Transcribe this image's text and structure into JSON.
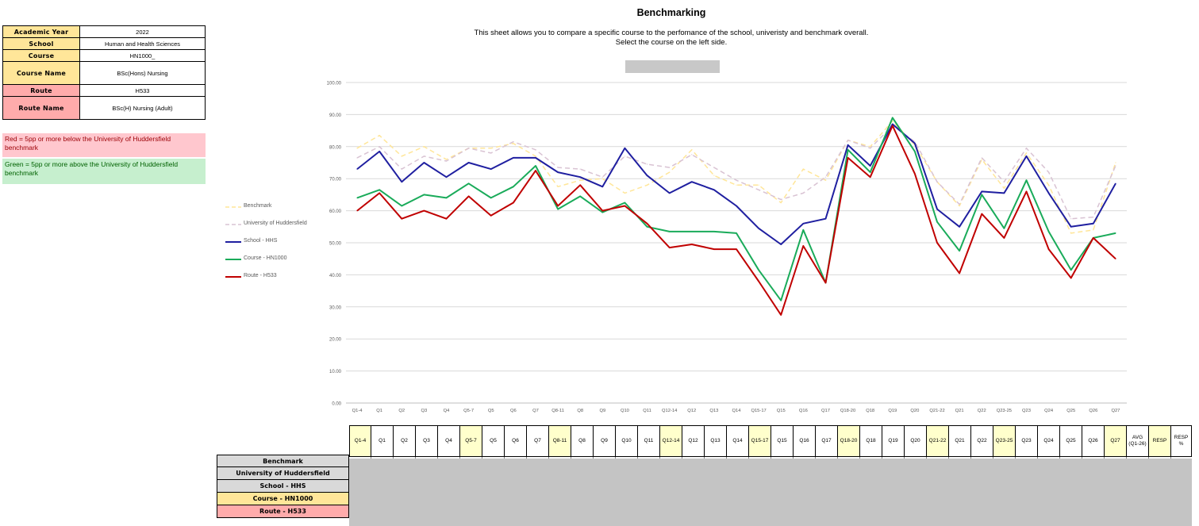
{
  "info_table": [
    {
      "label": "Academic Year",
      "value": "2022",
      "color": "yellow"
    },
    {
      "label": "School",
      "value": "Human and Health Sciences",
      "color": "yellow"
    },
    {
      "label": "Course",
      "value": "HN1000_",
      "color": "yellow"
    },
    {
      "label": "Course Name",
      "value": "BSc(Hons) Nursing",
      "color": "yellow"
    },
    {
      "label": "Route",
      "value": "H533",
      "color": "red"
    },
    {
      "label": "Route Name",
      "value": "BSc(H) Nursing (Adult)",
      "color": "red"
    }
  ],
  "key": {
    "red_text": "Red = 5pp or more below the University of Huddersfield benchmark",
    "green_text": "Green = 5pp or more above the University of Huddersfield benchmark"
  },
  "page": {
    "title": "Benchmarking",
    "desc_line1": "This sheet allows you to compare a specific course to the perfomance of the school, univeristy and benchmark overall.",
    "desc_line2": "Select the course on the left side."
  },
  "colors": {
    "benchmark": "#ffe699",
    "university": "#d9c3d3",
    "school": "#1f1fa0",
    "course": "#1aab5a",
    "route": "#c00000",
    "highlight": "#ffffcc"
  },
  "chart_data": {
    "type": "line",
    "title": "",
    "xlabel": "",
    "ylabel": "",
    "ylim": [
      0,
      100
    ],
    "ytick_labels": [
      "0.00",
      "10.00",
      "20.00",
      "30.00",
      "40.00",
      "50.00",
      "60.00",
      "70.00",
      "80.00",
      "90.00",
      "100.00"
    ],
    "grid": true,
    "legend_position": "left",
    "categories": [
      "Q1-4",
      "Q1",
      "Q2",
      "Q3",
      "Q4",
      "Q5-7",
      "Q5",
      "Q6",
      "Q7",
      "Q8-11",
      "Q8",
      "Q9",
      "Q10",
      "Q11",
      "Q12-14",
      "Q12",
      "Q13",
      "Q14",
      "Q15-17",
      "Q15",
      "Q16",
      "Q17",
      "Q18-20",
      "Q18",
      "Q19",
      "Q20",
      "Q21-22",
      "Q21",
      "Q22",
      "Q23-25",
      "Q23",
      "Q24",
      "Q25",
      "Q26",
      "Q27"
    ],
    "series": [
      {
        "name": "Benchmark",
        "style": "dashed",
        "color_key": "benchmark",
        "values": [
          79.5,
          83.5,
          77.0,
          80.0,
          76.0,
          79.5,
          79.5,
          81.0,
          77.0,
          67.5,
          69.5,
          70.0,
          65.5,
          68.0,
          72.0,
          79.0,
          71.0,
          68.0,
          68.0,
          62.5,
          73.0,
          69.5,
          82.0,
          80.0,
          88.0,
          80.5,
          69.0,
          61.5,
          76.0,
          67.0,
          78.0,
          68.0,
          53.0,
          54.0,
          75.0
        ]
      },
      {
        "name": "University of Huddersfield",
        "style": "dashed",
        "color_key": "university",
        "values": [
          76.5,
          80.0,
          73.0,
          77.0,
          75.5,
          79.5,
          78.0,
          81.5,
          79.0,
          73.5,
          73.0,
          70.5,
          77.0,
          74.5,
          73.5,
          77.5,
          73.5,
          69.5,
          66.5,
          63.5,
          65.5,
          70.5,
          82.0,
          79.5,
          86.5,
          81.5,
          69.0,
          62.0,
          76.5,
          69.0,
          79.5,
          72.0,
          57.5,
          58.0,
          74.0
        ]
      },
      {
        "name": "School - HHS",
        "style": "solid",
        "color_key": "school",
        "values": [
          73.0,
          78.5,
          69.0,
          75.0,
          70.5,
          75.0,
          73.0,
          76.5,
          76.5,
          72.0,
          70.5,
          67.5,
          79.5,
          71.0,
          65.5,
          69.0,
          66.5,
          61.5,
          54.5,
          49.5,
          56.0,
          57.5,
          80.5,
          74.0,
          87.0,
          81.0,
          60.5,
          55.0,
          66.0,
          65.5,
          77.0,
          65.5,
          55.0,
          56.0,
          68.5
        ]
      },
      {
        "name": "Course - HN1000",
        "style": "solid",
        "color_key": "course",
        "values": [
          64.0,
          66.5,
          61.5,
          65.0,
          64.0,
          68.5,
          64.0,
          67.5,
          74.0,
          60.5,
          64.5,
          59.5,
          62.5,
          55.0,
          53.5,
          53.5,
          53.5,
          53.0,
          41.5,
          32.0,
          54.0,
          37.5,
          79.0,
          72.0,
          89.0,
          78.5,
          56.5,
          47.5,
          65.0,
          54.5,
          69.5,
          53.5,
          41.5,
          51.5,
          53.0
        ]
      },
      {
        "name": "Route - H533",
        "style": "solid",
        "color_key": "route",
        "values": [
          60.0,
          65.5,
          57.5,
          60.0,
          57.5,
          64.5,
          58.5,
          62.5,
          72.5,
          61.5,
          68.0,
          60.0,
          61.5,
          56.0,
          48.5,
          49.5,
          48.0,
          48.0,
          38.0,
          27.5,
          49.0,
          37.5,
          76.5,
          70.5,
          86.5,
          71.5,
          50.0,
          40.5,
          59.0,
          51.5,
          66.0,
          48.0,
          39.0,
          51.5,
          45.0
        ]
      }
    ]
  },
  "grid_table": {
    "columns": [
      "Q1-4",
      "Q1",
      "Q2",
      "Q3",
      "Q4",
      "Q5-7",
      "Q5",
      "Q6",
      "Q7",
      "Q8-11",
      "Q8",
      "Q9",
      "Q10",
      "Q11",
      "Q12-14",
      "Q12",
      "Q13",
      "Q14",
      "Q15-17",
      "Q15",
      "Q16",
      "Q17",
      "Q18-20",
      "Q18",
      "Q19",
      "Q20",
      "Q21-22",
      "Q21",
      "Q22",
      "Q23-25",
      "Q23",
      "Q24",
      "Q25",
      "Q26",
      "Q27",
      "AVG (Q1-26)",
      "RESP",
      "RESP %"
    ],
    "highlight_columns": [
      "Q1-4",
      "Q5-7",
      "Q8-11",
      "Q12-14",
      "Q15-17",
      "Q18-20",
      "Q21-22",
      "Q23-25",
      "Q27",
      "RESP"
    ],
    "rows": [
      {
        "label": "Benchmark",
        "color": "gray"
      },
      {
        "label": "University of Huddersfield",
        "color": "gray"
      },
      {
        "label": "School - HHS",
        "color": "gray"
      },
      {
        "label": "Course - HN1000",
        "color": "yellow"
      },
      {
        "label": "Route - H533",
        "color": "red"
      }
    ]
  }
}
